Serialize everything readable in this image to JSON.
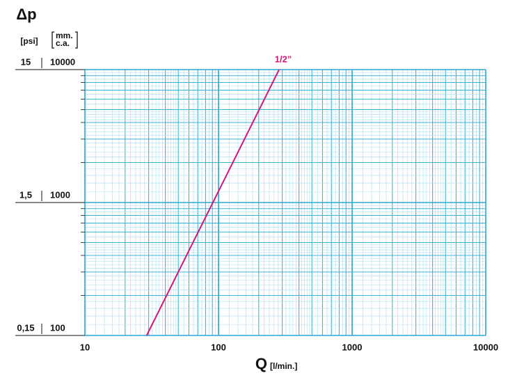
{
  "chart_data": {
    "type": "line",
    "title": "Δp",
    "y2label": "[psi]",
    "ylabel_lines": [
      "mm.",
      "c.a."
    ],
    "xlabel": "Q",
    "xlabel_unit": "[l/min.]",
    "log_x": true,
    "log_y": true,
    "grid": true,
    "xlim": [
      10,
      10000
    ],
    "xticks": [
      10,
      100,
      1000,
      10000
    ],
    "ylim": [
      100,
      10000
    ],
    "yticks": [
      100,
      1000,
      10000
    ],
    "y2lim": [
      0.15,
      15
    ],
    "y2ticks": [
      {
        "value": 0.15,
        "label": "0,15"
      },
      {
        "value": 1.5,
        "label": "1,5"
      },
      15
    ],
    "series": [
      {
        "name": "1/2”",
        "color": "#d6157a",
        "x": [
          29,
          284
        ],
        "values": [
          100,
          10000
        ]
      }
    ]
  }
}
